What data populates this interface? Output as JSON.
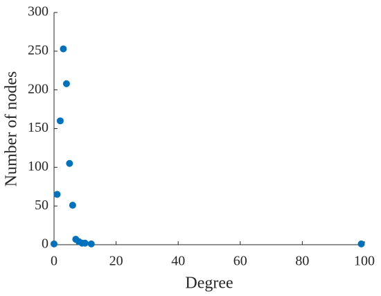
{
  "chart_data": {
    "type": "scatter",
    "xlabel": "Degree",
    "ylabel": "Number of nodes",
    "x": [
      0,
      1,
      2,
      3,
      4,
      5,
      6,
      7,
      8,
      9,
      10,
      12,
      99
    ],
    "values": [
      1,
      65,
      160,
      253,
      208,
      105,
      51,
      7,
      4,
      2,
      2,
      1,
      1
    ],
    "color": "#0072bd",
    "xlim": [
      0,
      100
    ],
    "xticks": [
      0,
      20,
      40,
      60,
      80,
      100
    ],
    "ylim": [
      0,
      300
    ],
    "yticks": [
      0,
      50,
      100,
      150,
      200,
      250,
      300
    ],
    "grid": false
  }
}
